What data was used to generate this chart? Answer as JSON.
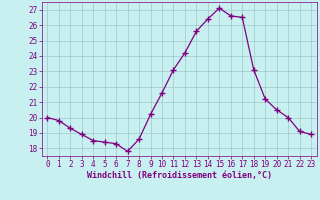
{
  "x": [
    0,
    1,
    2,
    3,
    4,
    5,
    6,
    7,
    8,
    9,
    10,
    11,
    12,
    13,
    14,
    15,
    16,
    17,
    18,
    19,
    20,
    21,
    22,
    23
  ],
  "y": [
    20.0,
    19.8,
    19.3,
    18.9,
    18.5,
    18.4,
    18.3,
    17.8,
    18.6,
    20.2,
    21.6,
    23.1,
    24.2,
    25.6,
    26.4,
    27.1,
    26.6,
    26.5,
    23.1,
    21.2,
    20.5,
    20.0,
    19.1,
    18.9
  ],
  "line_color": "#800080",
  "marker": "+",
  "marker_size": 4,
  "bg_color": "#c8f0f0",
  "grid_color": "#a0c8c8",
  "xlabel": "Windchill (Refroidissement éolien,°C)",
  "xlabel_color": "#800080",
  "tick_color": "#800080",
  "ylim": [
    17.5,
    27.5
  ],
  "yticks": [
    18,
    19,
    20,
    21,
    22,
    23,
    24,
    25,
    26,
    27
  ],
  "xlim": [
    -0.5,
    23.5
  ],
  "xticks": [
    0,
    1,
    2,
    3,
    4,
    5,
    6,
    7,
    8,
    9,
    10,
    11,
    12,
    13,
    14,
    15,
    16,
    17,
    18,
    19,
    20,
    21,
    22,
    23
  ],
  "tick_fontsize": 5.5,
  "xlabel_fontsize": 6.0,
  "linewidth": 0.9
}
